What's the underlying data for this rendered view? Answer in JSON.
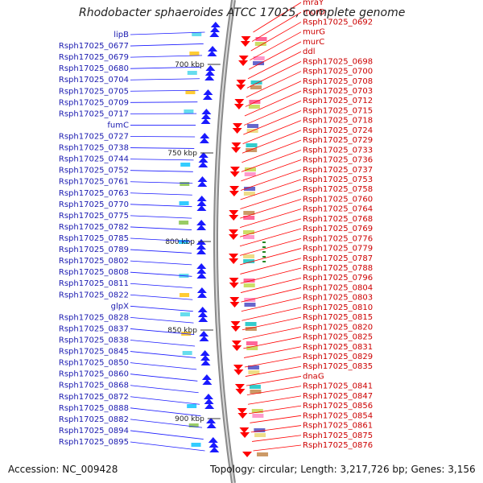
{
  "title": "Rhodobacter sphaeroides ATCC 17025, complete genome",
  "footer": {
    "accession": "Accession: NC_009428",
    "topology": "Topology: circular; Length: 3,217,726 bp; Genes: 3,156"
  },
  "colors": {
    "left_strand": "#1a1aff",
    "right_strand": "#ff0000",
    "backbone": "#999999",
    "left_label": "#1a1ab0",
    "right_label": "#cc0000"
  },
  "ticks": [
    "700 kbp",
    "750 kbp",
    "800 kbp",
    "850 kbp",
    "900 kbp"
  ],
  "left_labels": [
    "lipB",
    "Rsph17025_0677",
    "Rsph17025_0679",
    "Rsph17025_0680",
    "Rsph17025_0704",
    "Rsph17025_0705",
    "Rsph17025_0709",
    "Rsph17025_0717",
    "fumC",
    "Rsph17025_0727",
    "Rsph17025_0738",
    "Rsph17025_0744",
    "Rsph17025_0752",
    "Rsph17025_0761",
    "Rsph17025_0763",
    "Rsph17025_0770",
    "Rsph17025_0775",
    "Rsph17025_0782",
    "Rsph17025_0785",
    "Rsph17025_0789",
    "Rsph17025_0802",
    "Rsph17025_0808",
    "Rsph17025_0811",
    "Rsph17025_0822",
    "glpX",
    "Rsph17025_0828",
    "Rsph17025_0837",
    "Rsph17025_0838",
    "Rsph17025_0845",
    "Rsph17025_0850",
    "Rsph17025_0860",
    "Rsph17025_0868",
    "Rsph17025_0872",
    "Rsph17025_0888",
    "Rsph17025_0882",
    "Rsph17025_0894",
    "Rsph17025_0895"
  ],
  "right_labels": [
    "mraY",
    "murD",
    "Rsph17025_0692",
    "murG",
    "murC",
    "ddl",
    "Rsph17025_0698",
    "Rsph17025_0700",
    "Rsph17025_0708",
    "Rsph17025_0703",
    "Rsph17025_0712",
    "Rsph17025_0715",
    "Rsph17025_0718",
    "Rsph17025_0724",
    "Rsph17025_0729",
    "Rsph17025_0733",
    "Rsph17025_0736",
    "Rsph17025_0737",
    "Rsph17025_0753",
    "Rsph17025_0758",
    "Rsph17025_0760",
    "Rsph17025_0764",
    "Rsph17025_0768",
    "Rsph17025_0769",
    "Rsph17025_0776",
    "Rsph17025_0779",
    "Rsph17025_0787",
    "Rsph17025_0788",
    "Rsph17025_0796",
    "Rsph17025_0804",
    "Rsph17025_0803",
    "Rsph17025_0810",
    "Rsph17025_0815",
    "Rsph17025_0820",
    "Rsph17025_0825",
    "Rsph17025_0831",
    "Rsph17025_0829",
    "Rsph17025_0835",
    "dnaG",
    "Rsph17025_0841",
    "Rsph17025_0847",
    "Rsph17025_0856",
    "Rsph17025_0854",
    "Rsph17025_0861",
    "Rsph17025_0875",
    "Rsph17025_0876"
  ]
}
